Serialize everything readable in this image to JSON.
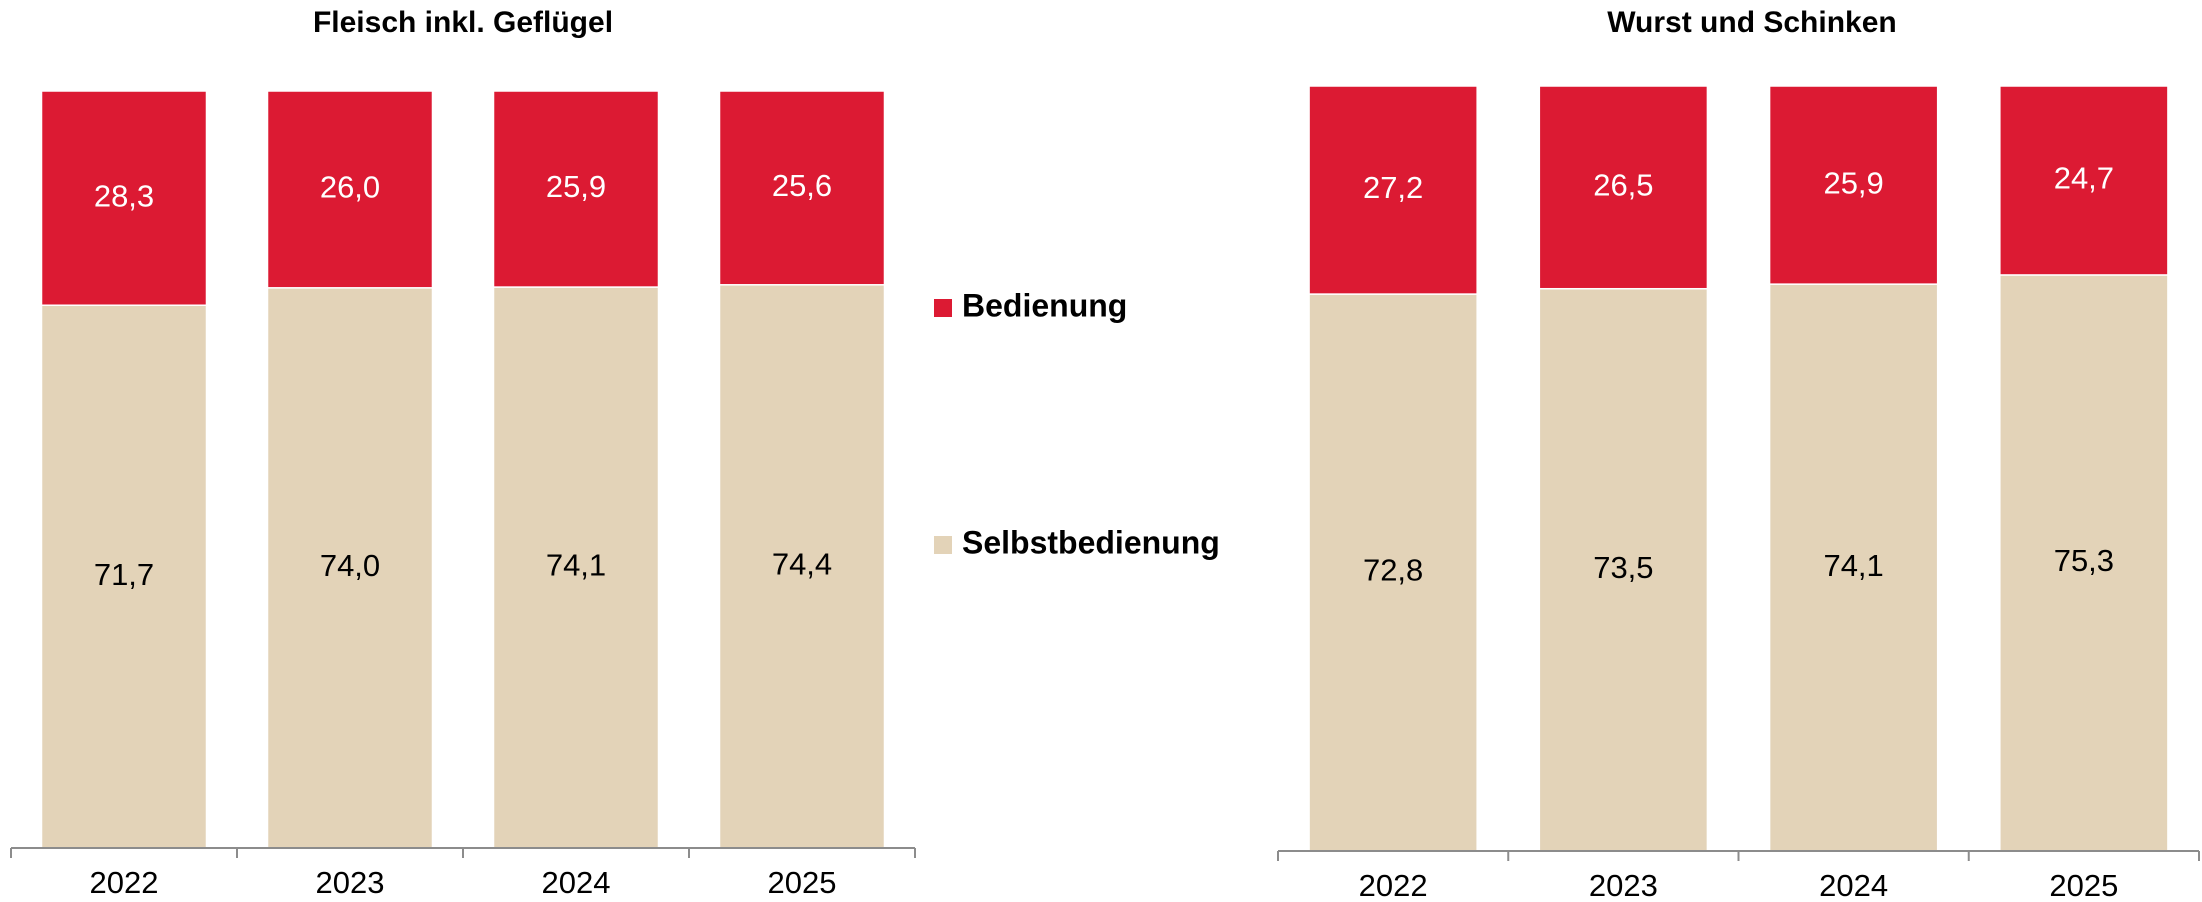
{
  "chart_data": [
    {
      "type": "bar",
      "stacked": true,
      "title": "Fleisch inkl. Geflügel",
      "categories": [
        "2022",
        "2023",
        "2024",
        "2025"
      ],
      "series": [
        {
          "name": "Selbstbedienung",
          "color": "#e3d3b8",
          "values": [
            71.7,
            74.0,
            74.1,
            74.4
          ],
          "value_labels": [
            "71,7",
            "74,0",
            "74,1",
            "74,4"
          ]
        },
        {
          "name": "Bedienung",
          "color": "#dc1a33",
          "values": [
            28.3,
            26.0,
            25.9,
            25.6
          ],
          "value_labels": [
            "28,3",
            "26,0",
            "25,9",
            "25,6"
          ]
        }
      ],
      "ylim": [
        0,
        100
      ]
    },
    {
      "type": "bar",
      "stacked": true,
      "title": "Wurst und Schinken",
      "categories": [
        "2022",
        "2023",
        "2024",
        "2025"
      ],
      "series": [
        {
          "color": "#e3d3b8",
          "values": [
            72.8,
            73.5,
            74.1,
            75.3
          ],
          "value_labels": [
            "72,8",
            "73,5",
            "74,1",
            "75,3"
          ]
        },
        {
          "color": "#dc1a33",
          "values": [
            27.2,
            26.5,
            25.9,
            24.7
          ],
          "value_labels": [
            "27,2",
            "26,5",
            "25,9",
            "24,7"
          ]
        }
      ],
      "ylim": [
        0,
        100
      ]
    }
  ]
}
